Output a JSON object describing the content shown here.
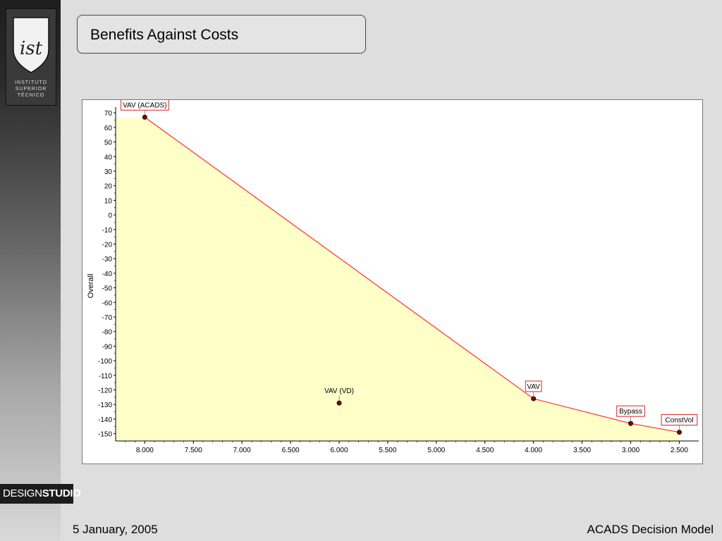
{
  "slide": {
    "title": "Benefits Against Costs",
    "footer_date": "5 January, 2005",
    "footer_title": "ACADS Decision Model"
  },
  "logo": {
    "monogram": "ist",
    "lines": [
      "INSTITUTO",
      "SUPERIOR",
      "TÉCNICO"
    ]
  },
  "brand": {
    "part1": "DESIGN",
    "part2": "STUDIO"
  },
  "colors": {
    "fill": "#ffffc8",
    "line": "#ff3030",
    "label_border": "#dd2222",
    "point": "#7a0000"
  },
  "chart_data": {
    "type": "area",
    "title": "",
    "xlabel": "",
    "ylabel": "Overall",
    "x_reversed": true,
    "xlim": [
      2300,
      8300
    ],
    "ylim": [
      -155,
      72
    ],
    "x_ticks": [
      8000,
      7500,
      7000,
      6500,
      6000,
      5500,
      5000,
      4500,
      4000,
      3500,
      3000,
      2500
    ],
    "x_tick_labels": [
      "8.000",
      "7.500",
      "7.000",
      "6.500",
      "6.000",
      "5.500",
      "5.000",
      "4.500",
      "4.000",
      "3.500",
      "3.000",
      "2.500"
    ],
    "y_ticks": [
      70,
      60,
      50,
      40,
      30,
      20,
      10,
      0,
      -10,
      -20,
      -30,
      -40,
      -50,
      -60,
      -70,
      -80,
      -90,
      -100,
      -110,
      -120,
      -130,
      -140,
      -150
    ],
    "frontier": [
      {
        "x": 8000,
        "y": 67
      },
      {
        "x": 4000,
        "y": -126
      },
      {
        "x": 3000,
        "y": -143
      },
      {
        "x": 2500,
        "y": -149
      }
    ],
    "points": [
      {
        "name": "VAV (ACADS)",
        "x": 8000,
        "y": 67,
        "boxed": true
      },
      {
        "name": "VAV (VD)",
        "x": 6000,
        "y": -129,
        "boxed": false
      },
      {
        "name": "VAV",
        "x": 4000,
        "y": -126,
        "boxed": true
      },
      {
        "name": "Bypass",
        "x": 3000,
        "y": -143,
        "boxed": true
      },
      {
        "name": "ConstVol",
        "x": 2500,
        "y": -149,
        "boxed": true
      }
    ]
  }
}
